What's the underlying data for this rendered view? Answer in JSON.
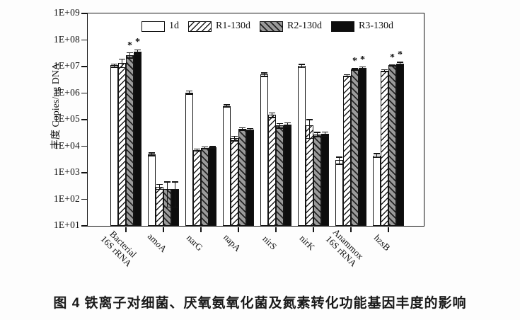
{
  "figure": {
    "caption": "图 4  铁离子对细菌、厌氧氨氧化菌及氮素转化功能基因丰度的影响"
  },
  "chart_data": {
    "type": "bar",
    "scale": "log",
    "ylabel": "丰度 Copies/ng DNA",
    "xlabel": "",
    "ylim": [
      10,
      1000000000
    ],
    "y_ticks": [
      "1E+09",
      "1E+08",
      "1E+07",
      "1E+06",
      "1E+05",
      "1E+04",
      "1E+03",
      "1E+02",
      "1E+01"
    ],
    "grid": false,
    "legend_position": "top-inside",
    "significance_marker": "*",
    "categories": [
      "Bacterial\n16S rRNA",
      "amoA",
      "narG",
      "napA",
      "nirS",
      "nirK",
      "Anammox\n16S rRNA",
      "hzsB"
    ],
    "series": [
      {
        "name": "1d",
        "pattern": "white",
        "values": [
          11000000.0,
          5000.0,
          1050000.0,
          330000.0,
          5000000.0,
          10500000.0,
          3000.0,
          4500.0
        ],
        "err_hi": [
          12500000.0,
          5600.0,
          1180000.0,
          360000.0,
          5800000.0,
          12000000.0,
          3900.0,
          5300.0
        ],
        "sig": [
          false,
          false,
          false,
          false,
          false,
          false,
          false,
          false
        ]
      },
      {
        "name": "R1-130d",
        "pattern": "hatch",
        "values": [
          14000000.0,
          300.0,
          7000.0,
          20000.0,
          150000.0,
          60000.0,
          4500000.0,
          7000000.0
        ],
        "err_hi": [
          19000000.0,
          360.0,
          7800.0,
          24000.0,
          180000.0,
          100000.0,
          4900000.0,
          7500000.0
        ],
        "sig": [
          false,
          false,
          false,
          false,
          false,
          false,
          false,
          false
        ]
      },
      {
        "name": "R2-130d",
        "pattern": "grayhatch",
        "values": [
          27000000.0,
          250.0,
          8500.0,
          45000.0,
          60000.0,
          28000.0,
          7800000.0,
          11000000.0
        ],
        "err_hi": [
          33000000.0,
          450.0,
          9300.0,
          50000.0,
          72000.0,
          33000.0,
          8400000.0,
          11600000.0
        ],
        "sig": [
          true,
          false,
          false,
          false,
          false,
          false,
          true,
          true
        ]
      },
      {
        "name": "R3-130d",
        "pattern": "black",
        "values": [
          36000000.0,
          250.0,
          9000.0,
          42000.0,
          65000.0,
          29000.0,
          9000000.0,
          13000000.0
        ],
        "err_hi": [
          43000000.0,
          450.0,
          9800.0,
          46000.0,
          76000.0,
          34000.0,
          9600000.0,
          14500000.0
        ],
        "sig": [
          true,
          false,
          false,
          false,
          false,
          false,
          true,
          true
        ]
      }
    ]
  },
  "colors": {
    "ink": "#141414",
    "gray_fill": "#9a9a9a",
    "background": "#fdfdfd"
  }
}
